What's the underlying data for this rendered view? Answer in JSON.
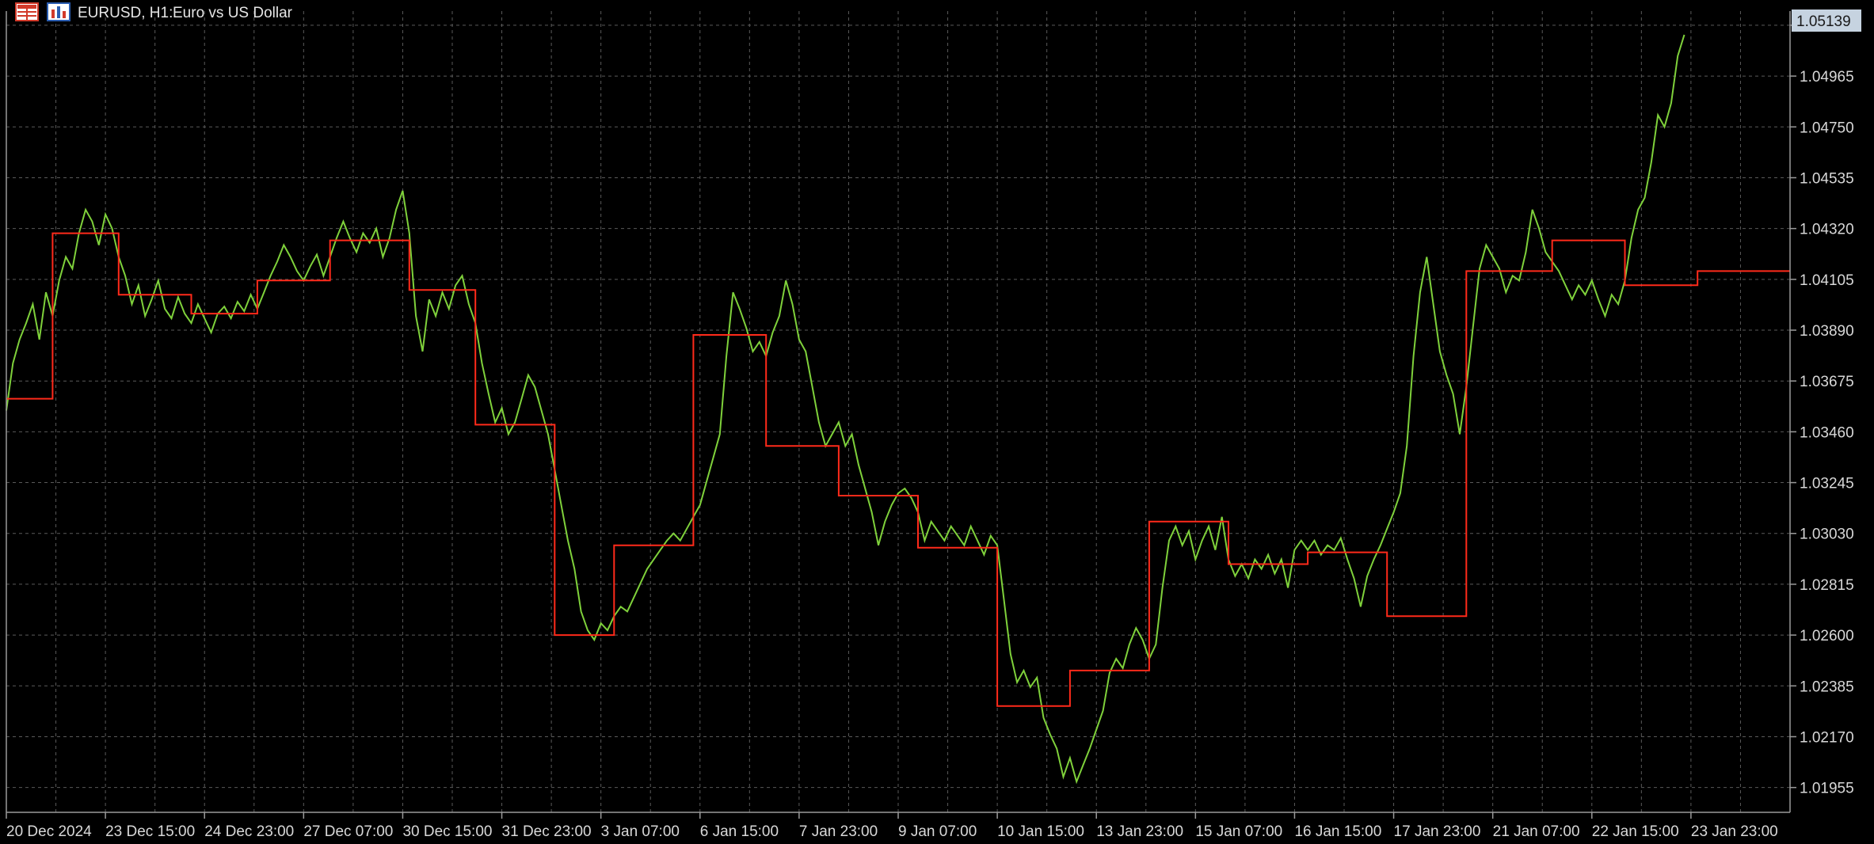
{
  "header": {
    "symbol": "EURUSD, H1:",
    "description": "Euro vs US Dollar",
    "icons": [
      "grid-menu-icon",
      "chart-type-icon"
    ]
  },
  "colors": {
    "background": "#000000",
    "grid": "#5a5a5a",
    "price_line": "#7fd13b",
    "step_line": "#ff2a1a",
    "price_tag_bg": "#c6d3e0",
    "axis_text": "#d8d8d8"
  },
  "chart_data": {
    "type": "line",
    "symbol": "EURUSD",
    "timeframe": "H1",
    "grid": true,
    "ylim": [
      1.0185,
      1.0524
    ],
    "yticks": [
      "1.05180",
      "1.04965",
      "1.04750",
      "1.04535",
      "1.04320",
      "1.04105",
      "1.03890",
      "1.03675",
      "1.03460",
      "1.03245",
      "1.03030",
      "1.02815",
      "1.02600",
      "1.02385",
      "1.02170",
      "1.01955"
    ],
    "xticks": [
      "20 Dec 2024",
      "23 Dec 15:00",
      "24 Dec 23:00",
      "27 Dec 07:00",
      "30 Dec 15:00",
      "31 Dec 23:00",
      "3 Jan 07:00",
      "6 Jan 15:00",
      "7 Jan 23:00",
      "9 Jan 07:00",
      "10 Jan 15:00",
      "13 Jan 23:00",
      "15 Jan 07:00",
      "16 Jan 15:00",
      "17 Jan 23:00",
      "21 Jan 07:00",
      "22 Jan 15:00",
      "23 Jan 23:00"
    ],
    "current_price": "1.05139",
    "series": [
      {
        "values": [
          [
            0,
            1.0355
          ],
          [
            2,
            1.0375
          ],
          [
            4,
            1.0385
          ],
          [
            6,
            1.0392
          ],
          [
            8,
            1.04
          ],
          [
            10,
            1.0385
          ],
          [
            12,
            1.0405
          ],
          [
            14,
            1.0395
          ],
          [
            16,
            1.041
          ],
          [
            18,
            1.042
          ],
          [
            20,
            1.0415
          ],
          [
            22,
            1.043
          ],
          [
            24,
            1.044
          ],
          [
            26,
            1.0435
          ],
          [
            28,
            1.0425
          ],
          [
            30,
            1.0438
          ],
          [
            32,
            1.0432
          ],
          [
            34,
            1.042
          ],
          [
            36,
            1.0412
          ],
          [
            38,
            1.04
          ],
          [
            40,
            1.0408
          ],
          [
            42,
            1.0395
          ],
          [
            44,
            1.0402
          ],
          [
            46,
            1.041
          ],
          [
            48,
            1.0398
          ],
          [
            50,
            1.0394
          ],
          [
            52,
            1.0403
          ],
          [
            54,
            1.0396
          ],
          [
            56,
            1.0392
          ],
          [
            58,
            1.04
          ],
          [
            60,
            1.0394
          ],
          [
            62,
            1.0388
          ],
          [
            64,
            1.0396
          ],
          [
            66,
            1.0399
          ],
          [
            68,
            1.0394
          ],
          [
            70,
            1.0401
          ],
          [
            72,
            1.0397
          ],
          [
            74,
            1.0404
          ],
          [
            76,
            1.0398
          ],
          [
            78,
            1.0405
          ],
          [
            80,
            1.0412
          ],
          [
            82,
            1.0418
          ],
          [
            84,
            1.0425
          ],
          [
            86,
            1.042
          ],
          [
            88,
            1.0414
          ],
          [
            90,
            1.041
          ],
          [
            92,
            1.0416
          ],
          [
            94,
            1.0421
          ],
          [
            96,
            1.0412
          ],
          [
            98,
            1.042
          ],
          [
            100,
            1.0428
          ],
          [
            102,
            1.0435
          ],
          [
            104,
            1.0428
          ],
          [
            106,
            1.0422
          ],
          [
            108,
            1.043
          ],
          [
            110,
            1.0426
          ],
          [
            112,
            1.0432
          ],
          [
            114,
            1.042
          ],
          [
            116,
            1.0428
          ],
          [
            118,
            1.044
          ],
          [
            120,
            1.0448
          ],
          [
            122,
            1.043
          ],
          [
            124,
            1.0395
          ],
          [
            126,
            1.038
          ],
          [
            128,
            1.0402
          ],
          [
            130,
            1.0395
          ],
          [
            132,
            1.0405
          ],
          [
            134,
            1.0398
          ],
          [
            136,
            1.0408
          ],
          [
            138,
            1.0412
          ],
          [
            140,
            1.04
          ],
          [
            142,
            1.0392
          ],
          [
            144,
            1.0375
          ],
          [
            146,
            1.0362
          ],
          [
            148,
            1.035
          ],
          [
            150,
            1.0356
          ],
          [
            152,
            1.0345
          ],
          [
            154,
            1.035
          ],
          [
            156,
            1.036
          ],
          [
            158,
            1.037
          ],
          [
            160,
            1.0365
          ],
          [
            162,
            1.0355
          ],
          [
            164,
            1.0345
          ],
          [
            166,
            1.033
          ],
          [
            168,
            1.0315
          ],
          [
            170,
            1.03
          ],
          [
            172,
            1.0288
          ],
          [
            174,
            1.027
          ],
          [
            176,
            1.0262
          ],
          [
            178,
            1.0258
          ],
          [
            180,
            1.0265
          ],
          [
            182,
            1.0262
          ],
          [
            184,
            1.0268
          ],
          [
            186,
            1.0272
          ],
          [
            188,
            1.027
          ],
          [
            190,
            1.0276
          ],
          [
            192,
            1.0282
          ],
          [
            194,
            1.0288
          ],
          [
            196,
            1.0292
          ],
          [
            198,
            1.0296
          ],
          [
            200,
            1.03
          ],
          [
            202,
            1.0303
          ],
          [
            204,
            1.03
          ],
          [
            206,
            1.0305
          ],
          [
            208,
            1.031
          ],
          [
            210,
            1.0315
          ],
          [
            212,
            1.0325
          ],
          [
            214,
            1.0335
          ],
          [
            216,
            1.0345
          ],
          [
            218,
            1.0378
          ],
          [
            220,
            1.0405
          ],
          [
            222,
            1.0398
          ],
          [
            224,
            1.039
          ],
          [
            226,
            1.038
          ],
          [
            228,
            1.0384
          ],
          [
            230,
            1.0378
          ],
          [
            232,
            1.0388
          ],
          [
            234,
            1.0395
          ],
          [
            236,
            1.041
          ],
          [
            238,
            1.04
          ],
          [
            240,
            1.0385
          ],
          [
            242,
            1.038
          ],
          [
            244,
            1.0365
          ],
          [
            246,
            1.035
          ],
          [
            248,
            1.034
          ],
          [
            250,
            1.0345
          ],
          [
            252,
            1.035
          ],
          [
            254,
            1.034
          ],
          [
            256,
            1.0345
          ],
          [
            258,
            1.0332
          ],
          [
            260,
            1.0322
          ],
          [
            262,
            1.0312
          ],
          [
            264,
            1.0298
          ],
          [
            266,
            1.0308
          ],
          [
            268,
            1.0315
          ],
          [
            270,
            1.032
          ],
          [
            272,
            1.0322
          ],
          [
            274,
            1.0318
          ],
          [
            276,
            1.0312
          ],
          [
            278,
            1.03
          ],
          [
            280,
            1.0308
          ],
          [
            282,
            1.0304
          ],
          [
            284,
            1.03
          ],
          [
            286,
            1.0306
          ],
          [
            288,
            1.0302
          ],
          [
            290,
            1.0298
          ],
          [
            292,
            1.0306
          ],
          [
            294,
            1.03
          ],
          [
            296,
            1.0294
          ],
          [
            298,
            1.0302
          ],
          [
            300,
            1.0298
          ],
          [
            302,
            1.0275
          ],
          [
            304,
            1.0252
          ],
          [
            306,
            1.024
          ],
          [
            308,
            1.0245
          ],
          [
            310,
            1.0238
          ],
          [
            312,
            1.0242
          ],
          [
            314,
            1.0225
          ],
          [
            316,
            1.0218
          ],
          [
            318,
            1.0212
          ],
          [
            320,
            1.02
          ],
          [
            322,
            1.0208
          ],
          [
            324,
            1.0198
          ],
          [
            326,
            1.0205
          ],
          [
            328,
            1.0212
          ],
          [
            330,
            1.022
          ],
          [
            332,
            1.0228
          ],
          [
            334,
            1.0244
          ],
          [
            336,
            1.025
          ],
          [
            338,
            1.0246
          ],
          [
            340,
            1.0256
          ],
          [
            342,
            1.0263
          ],
          [
            344,
            1.0258
          ],
          [
            346,
            1.025
          ],
          [
            348,
            1.0256
          ],
          [
            350,
            1.028
          ],
          [
            352,
            1.03
          ],
          [
            354,
            1.0306
          ],
          [
            356,
            1.0298
          ],
          [
            358,
            1.0304
          ],
          [
            360,
            1.0292
          ],
          [
            362,
            1.03
          ],
          [
            364,
            1.0306
          ],
          [
            366,
            1.0296
          ],
          [
            368,
            1.031
          ],
          [
            370,
            1.0292
          ],
          [
            372,
            1.0285
          ],
          [
            374,
            1.029
          ],
          [
            376,
            1.0284
          ],
          [
            378,
            1.0292
          ],
          [
            380,
            1.0288
          ],
          [
            382,
            1.0294
          ],
          [
            384,
            1.0286
          ],
          [
            386,
            1.0292
          ],
          [
            388,
            1.028
          ],
          [
            390,
            1.0296
          ],
          [
            392,
            1.03
          ],
          [
            394,
            1.0296
          ],
          [
            396,
            1.03
          ],
          [
            398,
            1.0294
          ],
          [
            400,
            1.0298
          ],
          [
            402,
            1.0296
          ],
          [
            404,
            1.0301
          ],
          [
            406,
            1.0292
          ],
          [
            408,
            1.0284
          ],
          [
            410,
            1.0272
          ],
          [
            412,
            1.0285
          ],
          [
            414,
            1.0292
          ],
          [
            416,
            1.0298
          ],
          [
            418,
            1.0305
          ],
          [
            420,
            1.0312
          ],
          [
            422,
            1.032
          ],
          [
            424,
            1.034
          ],
          [
            426,
            1.0378
          ],
          [
            428,
            1.0405
          ],
          [
            430,
            1.042
          ],
          [
            432,
            1.04
          ],
          [
            434,
            1.038
          ],
          [
            436,
            1.037
          ],
          [
            438,
            1.0362
          ],
          [
            440,
            1.0345
          ],
          [
            442,
            1.0365
          ],
          [
            444,
            1.039
          ],
          [
            446,
            1.0415
          ],
          [
            448,
            1.0425
          ],
          [
            450,
            1.042
          ],
          [
            452,
            1.0415
          ],
          [
            454,
            1.0405
          ],
          [
            456,
            1.0412
          ],
          [
            458,
            1.041
          ],
          [
            460,
            1.0422
          ],
          [
            462,
            1.044
          ],
          [
            464,
            1.0432
          ],
          [
            466,
            1.0422
          ],
          [
            468,
            1.0418
          ],
          [
            470,
            1.0414
          ],
          [
            472,
            1.0408
          ],
          [
            474,
            1.0402
          ],
          [
            476,
            1.0408
          ],
          [
            478,
            1.0404
          ],
          [
            480,
            1.041
          ],
          [
            482,
            1.0402
          ],
          [
            484,
            1.0395
          ],
          [
            486,
            1.0404
          ],
          [
            488,
            1.04
          ],
          [
            490,
            1.041
          ],
          [
            492,
            1.0428
          ],
          [
            494,
            1.044
          ],
          [
            496,
            1.0445
          ],
          [
            498,
            1.046
          ],
          [
            500,
            1.048
          ],
          [
            502,
            1.0475
          ],
          [
            504,
            1.0485
          ],
          [
            506,
            1.0505
          ],
          [
            508,
            1.0514
          ]
        ]
      },
      {
        "values": [
          [
            0,
            1.036
          ],
          [
            14,
            1.036
          ],
          [
            14,
            1.043
          ],
          [
            34,
            1.043
          ],
          [
            34,
            1.0404
          ],
          [
            56,
            1.0404
          ],
          [
            56,
            1.0396
          ],
          [
            76,
            1.0396
          ],
          [
            76,
            1.041
          ],
          [
            98,
            1.041
          ],
          [
            98,
            1.0427
          ],
          [
            122,
            1.0427
          ],
          [
            122,
            1.0406
          ],
          [
            142,
            1.0406
          ],
          [
            142,
            1.0349
          ],
          [
            166,
            1.0349
          ],
          [
            166,
            1.026
          ],
          [
            184,
            1.026
          ],
          [
            184,
            1.0298
          ],
          [
            208,
            1.0298
          ],
          [
            208,
            1.0387
          ],
          [
            230,
            1.0387
          ],
          [
            230,
            1.034
          ],
          [
            252,
            1.034
          ],
          [
            252,
            1.0319
          ],
          [
            276,
            1.0319
          ],
          [
            276,
            1.0297
          ],
          [
            300,
            1.0297
          ],
          [
            300,
            1.023
          ],
          [
            322,
            1.023
          ],
          [
            322,
            1.0245
          ],
          [
            346,
            1.0245
          ],
          [
            346,
            1.0308
          ],
          [
            370,
            1.0308
          ],
          [
            370,
            1.029
          ],
          [
            394,
            1.029
          ],
          [
            394,
            1.0295
          ],
          [
            418,
            1.0295
          ],
          [
            418,
            1.0268
          ],
          [
            442,
            1.0268
          ],
          [
            442,
            1.0414
          ],
          [
            468,
            1.0414
          ],
          [
            468,
            1.0427
          ],
          [
            490,
            1.0427
          ],
          [
            490,
            1.0408
          ],
          [
            512,
            1.0408
          ],
          [
            512,
            1.0414
          ],
          [
            540,
            1.0414
          ]
        ]
      }
    ]
  }
}
